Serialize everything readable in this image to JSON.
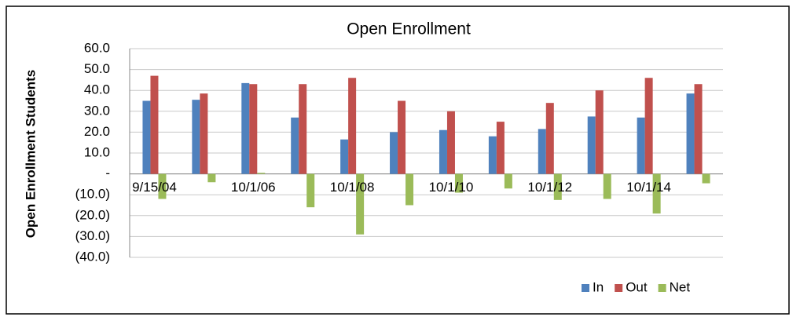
{
  "chart_data": {
    "type": "bar",
    "title": "Open Enrollment",
    "y_label": "Open Enrollment Students",
    "categories": [
      "9/15/04",
      null,
      "10/1/06",
      null,
      "10/1/08",
      null,
      "10/1/10",
      null,
      "10/1/12",
      null,
      "10/1/14",
      null
    ],
    "series": [
      {
        "name": "In",
        "color": "#4f81bd",
        "values": [
          35,
          35.5,
          43.5,
          27,
          16.5,
          20,
          21,
          18,
          21.5,
          27.5,
          27,
          38.5
        ]
      },
      {
        "name": "Out",
        "color": "#c0504d",
        "values": [
          47,
          38.5,
          43,
          43,
          46,
          35,
          30,
          25,
          34,
          40,
          46,
          43
        ]
      },
      {
        "name": "Net",
        "color": "#9bbb59",
        "values": [
          -12,
          -4,
          0.5,
          -16,
          -29,
          -15,
          -9,
          -7,
          -12.5,
          -12,
          -19,
          -4.5
        ]
      }
    ],
    "ylim": [
      -40,
      60
    ],
    "yticks": [
      {
        "value": 60,
        "label": "60.0"
      },
      {
        "value": 50,
        "label": "50.0"
      },
      {
        "value": 40,
        "label": "40.0"
      },
      {
        "value": 30,
        "label": "30.0"
      },
      {
        "value": 20,
        "label": "20.0"
      },
      {
        "value": 10,
        "label": "10.0"
      },
      {
        "value": 0,
        "label": "-"
      },
      {
        "value": -10,
        "label": "(10.0)"
      },
      {
        "value": -20,
        "label": "(20.0)"
      },
      {
        "value": -30,
        "label": "(30.0)"
      },
      {
        "value": -40,
        "label": "(40.0)"
      }
    ],
    "grid": true,
    "legend": "bottom-right"
  }
}
